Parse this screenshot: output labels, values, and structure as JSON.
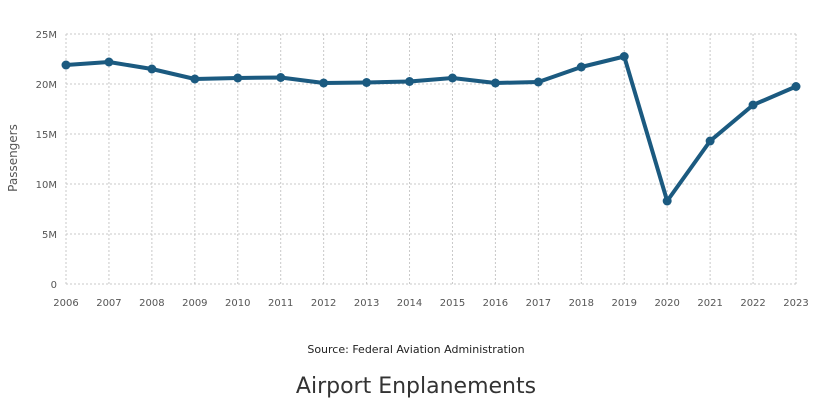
{
  "chart_data": {
    "type": "line",
    "title": "Airport Enplanements",
    "source": "Source: Federal Aviation Administration",
    "ylabel": "Passengers",
    "xlabel": "",
    "x": [
      "2006",
      "2007",
      "2008",
      "2009",
      "2010",
      "2011",
      "2012",
      "2013",
      "2014",
      "2015",
      "2016",
      "2017",
      "2018",
      "2019",
      "2020",
      "2021",
      "2022",
      "2023"
    ],
    "series": [
      {
        "name": "",
        "values": [
          21.9,
          22.2,
          21.5,
          20.5,
          20.6,
          20.65,
          20.1,
          20.15,
          20.25,
          20.6,
          20.1,
          20.2,
          21.7,
          22.75,
          8.3,
          14.3,
          17.9,
          19.75
        ]
      }
    ],
    "y_unit_suffix": "M",
    "ylim": [
      0,
      25
    ],
    "yticks": [
      0,
      5,
      10,
      15,
      20,
      25
    ],
    "ytick_labels": [
      "0",
      "5M",
      "10M",
      "15M",
      "20M",
      "25M"
    ],
    "grid": true,
    "grid_style": "dotted",
    "line_color": "#1b5a80",
    "grid_color": "#c8c8c8"
  }
}
